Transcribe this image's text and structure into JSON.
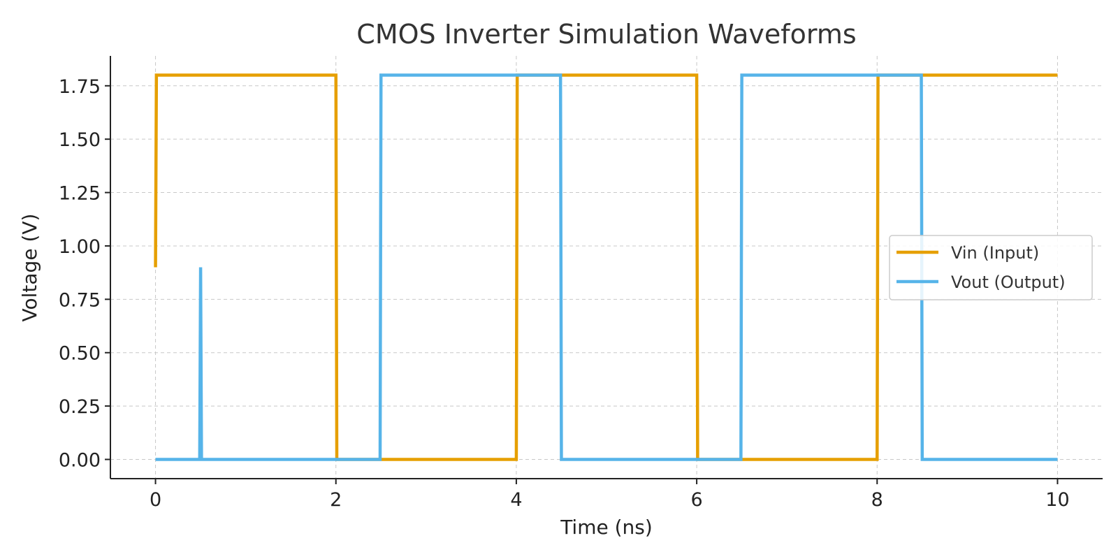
{
  "chart_data": {
    "type": "line",
    "title": "CMOS Inverter Simulation Waveforms",
    "xlabel": "Time (ns)",
    "ylabel": "Voltage (V)",
    "xlim": [
      -0.5,
      10.5
    ],
    "ylim": [
      -0.09,
      1.89
    ],
    "xticks": [
      0,
      2,
      4,
      6,
      8,
      10
    ],
    "xtick_labels": [
      "0",
      "2",
      "4",
      "6",
      "8",
      "10"
    ],
    "yticks": [
      0,
      0.25,
      0.5,
      0.75,
      1.0,
      1.25,
      1.5,
      1.75
    ],
    "ytick_labels": [
      "0.00",
      "0.25",
      "0.50",
      "0.75",
      "1.00",
      "1.25",
      "1.50",
      "1.75"
    ],
    "grid": true,
    "legend_position": "center-right",
    "series": [
      {
        "name": "Vin (Input)",
        "color": "#E69F00",
        "x": [
          0,
          0.01,
          2,
          2.01,
          4,
          4.01,
          6,
          6.01,
          8,
          8.01,
          10
        ],
        "y": [
          0.9,
          1.8,
          1.8,
          0,
          0,
          1.8,
          1.8,
          0,
          0,
          1.8,
          1.8
        ]
      },
      {
        "name": "Vout (Output)",
        "color": "#56B4E9",
        "x": [
          0,
          0.49,
          0.5,
          0.51,
          2.49,
          2.5,
          4.49,
          4.5,
          6.49,
          6.5,
          8.49,
          8.5,
          10
        ],
        "y": [
          0,
          0,
          0.9,
          0,
          0,
          1.8,
          1.8,
          0,
          0,
          1.8,
          1.8,
          0,
          0
        ]
      }
    ]
  }
}
